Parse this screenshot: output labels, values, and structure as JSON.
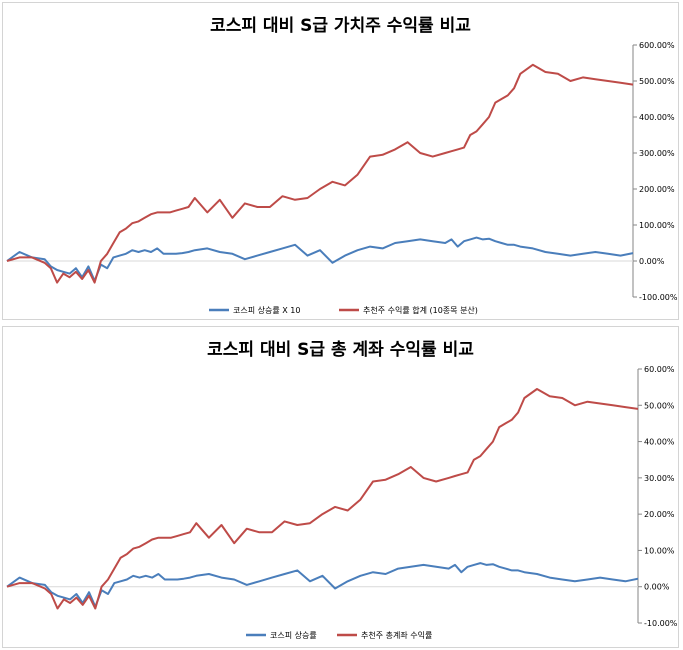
{
  "colors": {
    "kospi": "#4a7ebb",
    "portfolio": "#be4b48",
    "axis": "#868686"
  },
  "chart_data": [
    {
      "type": "line",
      "title": "코스피 대비 S급 가치주 수익률 비교",
      "xlabel": "",
      "ylabel": "",
      "ylim": [
        -1.0,
        6.0
      ],
      "yticks": [
        "-100.00%",
        "0.00%",
        "100.00%",
        "200.00%",
        "300.00%",
        "400.00%",
        "500.00%",
        "600.00%"
      ],
      "ytick_values": [
        -1.0,
        0.0,
        1.0,
        2.0,
        3.0,
        4.0,
        5.0,
        6.0
      ],
      "grid": false,
      "legend_position": "bottom",
      "x": [
        0,
        2,
        4,
        6,
        7,
        8,
        9,
        10,
        11,
        12,
        13,
        14,
        15,
        16,
        17,
        18,
        19,
        20,
        21,
        22,
        23,
        24,
        25,
        26,
        27,
        28,
        29,
        30,
        32,
        34,
        36,
        38,
        40,
        42,
        44,
        46,
        48,
        50,
        52,
        54,
        56,
        58,
        60,
        62,
        64,
        66,
        68,
        70,
        71,
        72,
        73,
        74,
        75,
        76,
        77,
        78,
        79,
        80,
        81,
        82,
        84,
        86,
        88,
        90,
        92,
        94,
        96,
        98,
        100
      ],
      "series": [
        {
          "name": "코스피 상승률 X 10",
          "values": [
            0.0,
            0.25,
            0.1,
            0.05,
            -0.15,
            -0.25,
            -0.3,
            -0.35,
            -0.2,
            -0.45,
            -0.15,
            -0.55,
            -0.1,
            -0.2,
            0.1,
            0.15,
            0.2,
            0.3,
            0.25,
            0.3,
            0.25,
            0.35,
            0.2,
            0.2,
            0.2,
            0.22,
            0.25,
            0.3,
            0.35,
            0.25,
            0.2,
            0.05,
            0.15,
            0.25,
            0.35,
            0.45,
            0.15,
            0.3,
            -0.05,
            0.15,
            0.3,
            0.4,
            0.35,
            0.5,
            0.55,
            0.6,
            0.55,
            0.5,
            0.6,
            0.4,
            0.55,
            0.6,
            0.65,
            0.6,
            0.62,
            0.55,
            0.5,
            0.45,
            0.45,
            0.4,
            0.35,
            0.25,
            0.2,
            0.15,
            0.2,
            0.25,
            0.2,
            0.15,
            0.22
          ]
        },
        {
          "name": "추천주 수익률 합계 (10종목 분산)",
          "values": [
            0.0,
            0.1,
            0.1,
            -0.05,
            -0.2,
            -0.6,
            -0.35,
            -0.45,
            -0.3,
            -0.5,
            -0.25,
            -0.6,
            0.0,
            0.2,
            0.5,
            0.8,
            0.9,
            1.05,
            1.1,
            1.2,
            1.3,
            1.35,
            1.35,
            1.35,
            1.4,
            1.45,
            1.5,
            1.75,
            1.35,
            1.7,
            1.2,
            1.6,
            1.5,
            1.5,
            1.8,
            1.7,
            1.75,
            2.0,
            2.2,
            2.1,
            2.4,
            2.9,
            2.95,
            3.1,
            3.3,
            3.0,
            2.9,
            3.0,
            3.05,
            3.1,
            3.15,
            3.5,
            3.6,
            3.8,
            4.0,
            4.4,
            4.5,
            4.6,
            4.8,
            5.2,
            5.45,
            5.25,
            5.2,
            5.0,
            5.1,
            5.05,
            5.0,
            4.95,
            4.9
          ]
        }
      ]
    },
    {
      "type": "line",
      "title": "코스피 대비 S급 총 계좌 수익률 비교",
      "xlabel": "",
      "ylabel": "",
      "ylim": [
        -0.1,
        0.6
      ],
      "yticks": [
        "-10.00%",
        "0.00%",
        "10.00%",
        "20.00%",
        "30.00%",
        "40.00%",
        "50.00%",
        "60.00%"
      ],
      "ytick_values": [
        -0.1,
        0.0,
        0.1,
        0.2,
        0.3,
        0.4,
        0.5,
        0.6
      ],
      "grid": false,
      "legend_position": "bottom",
      "x": [
        0,
        2,
        4,
        6,
        7,
        8,
        9,
        10,
        11,
        12,
        13,
        14,
        15,
        16,
        17,
        18,
        19,
        20,
        21,
        22,
        23,
        24,
        25,
        26,
        27,
        28,
        29,
        30,
        32,
        34,
        36,
        38,
        40,
        42,
        44,
        46,
        48,
        50,
        52,
        54,
        56,
        58,
        60,
        62,
        64,
        66,
        68,
        70,
        71,
        72,
        73,
        74,
        75,
        76,
        77,
        78,
        79,
        80,
        81,
        82,
        84,
        86,
        88,
        90,
        92,
        94,
        96,
        98,
        100
      ],
      "series": [
        {
          "name": "코스피 상승률",
          "values": [
            0.0,
            0.025,
            0.01,
            0.005,
            -0.015,
            -0.025,
            -0.03,
            -0.035,
            -0.02,
            -0.045,
            -0.015,
            -0.055,
            -0.01,
            -0.02,
            0.01,
            0.015,
            0.02,
            0.03,
            0.025,
            0.03,
            0.025,
            0.035,
            0.02,
            0.02,
            0.02,
            0.022,
            0.025,
            0.03,
            0.035,
            0.025,
            0.02,
            0.005,
            0.015,
            0.025,
            0.035,
            0.045,
            0.015,
            0.03,
            -0.005,
            0.015,
            0.03,
            0.04,
            0.035,
            0.05,
            0.055,
            0.06,
            0.055,
            0.05,
            0.06,
            0.04,
            0.055,
            0.06,
            0.065,
            0.06,
            0.062,
            0.055,
            0.05,
            0.045,
            0.045,
            0.04,
            0.035,
            0.025,
            0.02,
            0.015,
            0.02,
            0.025,
            0.02,
            0.015,
            0.022
          ]
        },
        {
          "name": "추천주 총계좌 수익률",
          "values": [
            0.0,
            0.01,
            0.01,
            -0.005,
            -0.02,
            -0.06,
            -0.035,
            -0.045,
            -0.03,
            -0.05,
            -0.025,
            -0.06,
            0.0,
            0.02,
            0.05,
            0.08,
            0.09,
            0.105,
            0.11,
            0.12,
            0.13,
            0.135,
            0.135,
            0.135,
            0.14,
            0.145,
            0.15,
            0.175,
            0.135,
            0.17,
            0.12,
            0.16,
            0.15,
            0.15,
            0.18,
            0.17,
            0.175,
            0.2,
            0.22,
            0.21,
            0.24,
            0.29,
            0.295,
            0.31,
            0.33,
            0.3,
            0.29,
            0.3,
            0.305,
            0.31,
            0.315,
            0.35,
            0.36,
            0.38,
            0.4,
            0.44,
            0.45,
            0.46,
            0.48,
            0.52,
            0.545,
            0.525,
            0.52,
            0.5,
            0.51,
            0.505,
            0.5,
            0.495,
            0.49
          ]
        }
      ]
    }
  ]
}
